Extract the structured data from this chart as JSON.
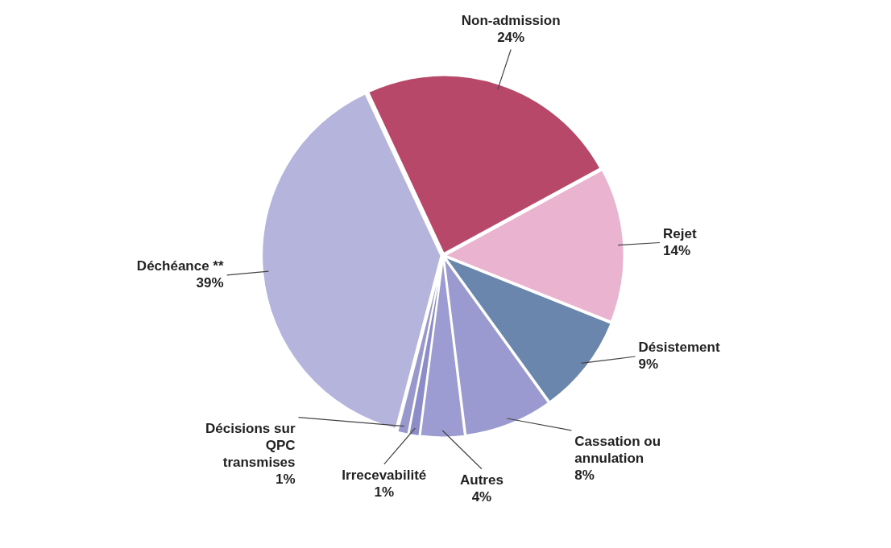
{
  "chart_data": {
    "type": "pie",
    "categories": [
      "Non-admission",
      "Rejet",
      "Désistement",
      "Cassation ou annulation",
      "Autres",
      "Irrecevabilité",
      "Décisions sur QPC transmises",
      "Déchéance **"
    ],
    "values": [
      24,
      14,
      9,
      8,
      4,
      1,
      1,
      39
    ],
    "value_labels": [
      "24%",
      "14%",
      "9%",
      "8%",
      "4%",
      "1%",
      "1%",
      "39%"
    ],
    "colors": [
      "#b8486a",
      "#eab4d0",
      "#6a86ac",
      "#9a9ad0",
      "#9c9cd2",
      "#8c8cc8",
      "#9898cc",
      "#b4b4dc"
    ],
    "legend": false
  }
}
